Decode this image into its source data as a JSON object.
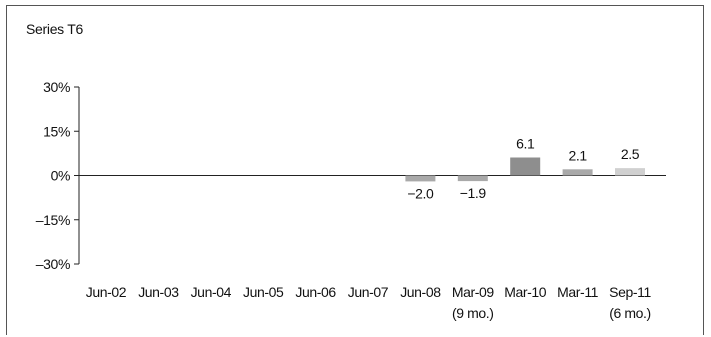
{
  "chart_data": {
    "type": "bar",
    "title": "Series T6",
    "categories": [
      "Jun-02",
      "Jun-03",
      "Jun-04",
      "Jun-05",
      "Jun-06",
      "Jun-07",
      "Jun-08",
      "Mar-09",
      "Mar-10",
      "Mar-11",
      "Sep-11"
    ],
    "category_sublabels": [
      "",
      "",
      "",
      "",
      "",
      "",
      "",
      "(9 mo.)",
      "",
      "",
      "(6 mo.)"
    ],
    "values": [
      null,
      null,
      null,
      null,
      null,
      null,
      -2.0,
      -1.9,
      6.1,
      2.1,
      2.5
    ],
    "value_labels": [
      "",
      "",
      "",
      "",
      "",
      "",
      "−2.0",
      "−1.9",
      "6.1",
      "2.1",
      "2.5"
    ],
    "bar_colors": [
      "#a9a9a9",
      "#a9a9a9",
      "#a9a9a9",
      "#a9a9a9",
      "#a9a9a9",
      "#a9a9a9",
      "#a9a9a9",
      "#a9a9a9",
      "#8e8e8e",
      "#a9a9a9",
      "#d0d0d0"
    ],
    "yticks": [
      30,
      15,
      0,
      -15,
      -30
    ],
    "ytick_labels": [
      "30%",
      "15%",
      "0%",
      "–15%",
      "–30%"
    ],
    "ylim": [
      -30,
      30
    ],
    "grid": false,
    "legend": "none"
  }
}
